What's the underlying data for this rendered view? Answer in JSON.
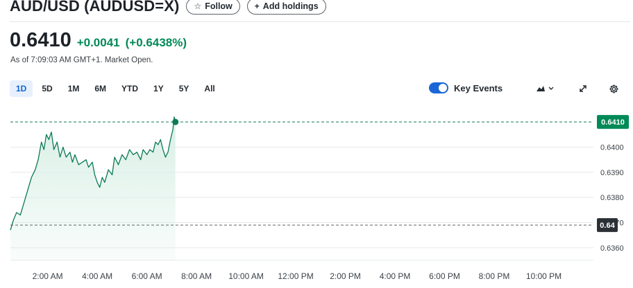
{
  "header": {
    "title": "AUD/USD (AUDUSD=X)",
    "follow_label": "Follow",
    "add_holdings_label": "Add holdings"
  },
  "quote": {
    "price": "0.6410",
    "change": "+0.0041",
    "change_percent": "(+0.6438%)",
    "as_of": "As of 7:09:03 AM GMT+1. Market Open."
  },
  "ranges": [
    "1D",
    "5D",
    "1M",
    "6M",
    "YTD",
    "1Y",
    "5Y",
    "All"
  ],
  "active_range": "1D",
  "toolbar": {
    "key_events_label": "Key Events",
    "key_events_on": true
  },
  "colors": {
    "up": "#008a57",
    "accent": "#1a66d6",
    "line": "#0b7a55",
    "fill": "#d9efe6",
    "prev_close_badge": "#2b3036"
  },
  "chart_data": {
    "type": "area",
    "ylim": [
      0.6355,
      0.6415
    ],
    "y_ticks": [
      "0.6400",
      "0.6390",
      "0.6380",
      "0.6370",
      "0.6360"
    ],
    "x_ticks": [
      "2:00 AM",
      "4:00 AM",
      "6:00 AM",
      "8:00 AM",
      "10:00 AM",
      "12:00 PM",
      "2:00 PM",
      "4:00 PM",
      "6:00 PM",
      "8:00 PM",
      "10:00 PM"
    ],
    "x_tick_hours": [
      2,
      4,
      6,
      8,
      10,
      12,
      14,
      16,
      18,
      20,
      22
    ],
    "x_range_hours": [
      0.5,
      24.0
    ],
    "current_price": 0.641,
    "current_label": "0.6410",
    "previous_close": 0.6369,
    "previous_close_label": "0.64",
    "series": [
      {
        "x": [
          0.5,
          0.62,
          0.75,
          0.9,
          1.05,
          1.2,
          1.35,
          1.5,
          1.62,
          1.75,
          1.85,
          1.95,
          2.05,
          2.15,
          2.25,
          2.38,
          2.5,
          2.62,
          2.75,
          2.9,
          3.0,
          3.1,
          3.25,
          3.4,
          3.55,
          3.65,
          3.8,
          3.9,
          4.0,
          4.1,
          4.2,
          4.3,
          4.45,
          4.6,
          4.7,
          4.85,
          5.0,
          5.15,
          5.3,
          5.45,
          5.6,
          5.75,
          5.85,
          6.0,
          6.12,
          6.25,
          6.35,
          6.45,
          6.55,
          6.65,
          6.75,
          6.85,
          6.95,
          7.05,
          7.1,
          7.15
        ],
        "values": [
          0.6367,
          0.6371,
          0.6374,
          0.6373,
          0.6378,
          0.6383,
          0.6388,
          0.6391,
          0.6395,
          0.6402,
          0.6399,
          0.6405,
          0.6403,
          0.6406,
          0.6399,
          0.6402,
          0.6396,
          0.64,
          0.6396,
          0.6398,
          0.6394,
          0.6397,
          0.6393,
          0.6394,
          0.6395,
          0.6392,
          0.6394,
          0.6389,
          0.6386,
          0.6384,
          0.6388,
          0.6386,
          0.6391,
          0.6389,
          0.6396,
          0.6393,
          0.6397,
          0.6395,
          0.6399,
          0.6397,
          0.6398,
          0.6395,
          0.6399,
          0.6397,
          0.6399,
          0.6398,
          0.6402,
          0.6401,
          0.6403,
          0.6399,
          0.6396,
          0.6398,
          0.6403,
          0.6407,
          0.6412,
          0.641
        ]
      }
    ]
  }
}
